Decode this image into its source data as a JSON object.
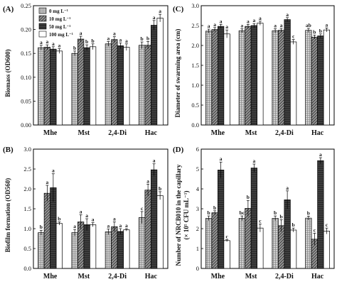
{
  "series_names": [
    "0 mg L⁻¹",
    "10 mg L⁻¹",
    "50 mg L⁻¹",
    "100 mg L⁻¹"
  ],
  "chart_data": [
    {
      "type": "bar",
      "panel_label": "(A)",
      "ylabel": "Biomass (OD600)",
      "categories": [
        "Mhe",
        "Mst",
        "2,4-Di",
        "Hac"
      ],
      "ylim": [
        0.0,
        0.25
      ],
      "yticks": [
        0.0,
        0.05,
        0.1,
        0.15,
        0.2,
        0.25
      ],
      "ytick_labels": [
        "0.00",
        "0.05",
        "0.10",
        "0.15",
        "0.20",
        "0.25"
      ],
      "legend": "top-left",
      "series": [
        {
          "name": "0 mg L⁻¹",
          "values": [
            0.162,
            0.15,
            0.17,
            0.167
          ],
          "errors": [
            0.005,
            0.005,
            0.005,
            0.007
          ],
          "letters": [
            "a",
            "b",
            "a",
            "b"
          ]
        },
        {
          "name": "10 mg L⁻¹",
          "values": [
            0.163,
            0.18,
            0.179,
            0.167
          ],
          "errors": [
            0.005,
            0.006,
            0.006,
            0.008
          ],
          "letters": [
            "a",
            "a",
            "a",
            "b"
          ]
        },
        {
          "name": "50 mg L⁻¹",
          "values": [
            0.159,
            0.162,
            0.166,
            0.209
          ],
          "errors": [
            0.005,
            0.006,
            0.006,
            0.01
          ],
          "letters": [
            "a",
            "b",
            "a",
            "a"
          ]
        },
        {
          "name": "100 mg L⁻¹",
          "values": [
            0.155,
            0.164,
            0.163,
            0.224
          ],
          "errors": [
            0.005,
            0.006,
            0.007,
            0.008
          ],
          "letters": [
            "a",
            "b",
            "a",
            "a"
          ]
        }
      ]
    },
    {
      "type": "bar",
      "panel_label": "(B)",
      "ylabel": "Biofilm formation (OD560)",
      "categories": [
        "Mhe",
        "Mst",
        "2,4-Di",
        "Hac"
      ],
      "ylim": [
        0.0,
        3.0
      ],
      "yticks": [
        0.0,
        0.5,
        1.0,
        1.5,
        2.0,
        2.5,
        3.0
      ],
      "ytick_labels": [
        "0.0",
        "0.5",
        "1.0",
        "1.5",
        "2.0",
        "2.5",
        "3.0"
      ],
      "series": [
        {
          "name": "0 mg L⁻¹",
          "values": [
            0.9,
            0.9,
            0.92,
            1.28
          ],
          "errors": [
            0.06,
            0.08,
            0.07,
            0.15
          ],
          "letters": [
            "b",
            "a",
            "a",
            "c"
          ]
        },
        {
          "name": "10 mg L⁻¹",
          "values": [
            1.89,
            1.17,
            1.05,
            1.97
          ],
          "errors": [
            0.2,
            0.18,
            0.12,
            0.15
          ],
          "letters": [
            "a",
            "a",
            "a",
            "a"
          ]
        },
        {
          "name": "50 mg L⁻¹",
          "values": [
            2.03,
            1.1,
            0.93,
            2.48
          ],
          "errors": [
            0.35,
            0.15,
            0.07,
            0.15
          ],
          "letters": [
            "a",
            "a",
            "a",
            "a"
          ]
        },
        {
          "name": "100 mg L⁻¹",
          "values": [
            1.13,
            1.1,
            0.97,
            1.83
          ],
          "errors": [
            0.04,
            0.05,
            0.03,
            0.1
          ],
          "letters": [
            "b",
            "a",
            "a",
            "b"
          ]
        }
      ]
    },
    {
      "type": "bar",
      "panel_label": "(C)",
      "ylabel": "Diameter of swarming area (cm)",
      "categories": [
        "Mhe",
        "Mst",
        "2,4-Di",
        "Hac"
      ],
      "ylim": [
        0.0,
        3.0
      ],
      "yticks": [
        0.0,
        0.5,
        1.0,
        1.5,
        2.0,
        2.5,
        3.0
      ],
      "ytick_labels": [
        "0.0",
        "0.5",
        "1.0",
        "1.5",
        "2.0",
        "2.5",
        "3.0"
      ],
      "series": [
        {
          "name": "0 mg L⁻¹",
          "values": [
            2.36,
            2.37,
            2.37,
            2.38
          ],
          "errors": [
            0.05,
            0.05,
            0.05,
            0.05
          ],
          "letters": [
            "a",
            "a",
            "a",
            "ab"
          ]
        },
        {
          "name": "10 mg L⁻¹",
          "values": [
            2.4,
            2.48,
            2.38,
            2.21
          ],
          "errors": [
            0.05,
            0.05,
            0.05,
            0.05
          ],
          "letters": [
            "a",
            "a",
            "a",
            "b"
          ]
        },
        {
          "name": "50 mg L⁻¹",
          "values": [
            2.48,
            2.5,
            2.65,
            2.24
          ],
          "errors": [
            0.05,
            0.05,
            0.05,
            0.05
          ],
          "letters": [
            "a",
            "a",
            "a",
            "b"
          ]
        },
        {
          "name": "100 mg L⁻¹",
          "values": [
            2.29,
            2.56,
            2.09,
            2.39
          ],
          "errors": [
            0.1,
            0.05,
            0.06,
            0.05
          ],
          "letters": [
            "a",
            "a",
            "c",
            "a"
          ]
        }
      ]
    },
    {
      "type": "bar",
      "panel_label": "(D)",
      "ylabel": "Number of NRCB010 in the capillary",
      "ylabel2": "(× 10⁵ CFU mL⁻¹)",
      "categories": [
        "Mhe",
        "Mst",
        "2,4-Di",
        "Hac"
      ],
      "ylim": [
        0,
        6
      ],
      "yticks": [
        0,
        1,
        2,
        3,
        4,
        5,
        6
      ],
      "ytick_labels": [
        "0",
        "1",
        "2",
        "3",
        "4",
        "5",
        "6"
      ],
      "series": [
        {
          "name": "0 mg L⁻¹",
          "values": [
            2.52,
            2.52,
            2.52,
            2.53
          ],
          "errors": [
            0.12,
            0.12,
            0.12,
            0.1
          ],
          "letters": [
            "b",
            "bc",
            "b",
            "b"
          ]
        },
        {
          "name": "10 mg L⁻¹",
          "values": [
            2.8,
            3.02,
            2.15,
            1.47
          ],
          "errors": [
            0.1,
            0.4,
            0.3,
            0.3
          ],
          "letters": [
            "b",
            "b",
            "b",
            "c"
          ]
        },
        {
          "name": "50 mg L⁻¹",
          "values": [
            4.95,
            5.05,
            3.45,
            5.42
          ],
          "errors": [
            0.4,
            0.2,
            0.45,
            0.15
          ],
          "letters": [
            "a",
            "a",
            "a",
            "a"
          ]
        },
        {
          "name": "100 mg L⁻¹",
          "values": [
            1.4,
            2.03,
            1.93,
            1.88
          ],
          "errors": [
            0.05,
            0.2,
            0.1,
            0.15
          ],
          "letters": [
            "c",
            "c",
            "b",
            "c"
          ]
        }
      ]
    }
  ]
}
